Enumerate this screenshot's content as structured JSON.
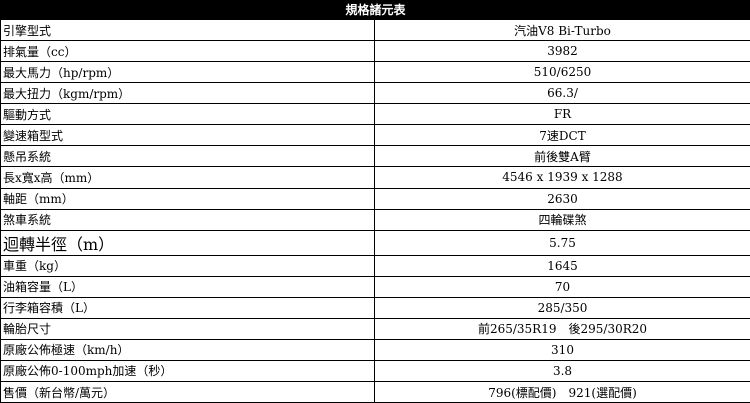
{
  "title": "規格諸元表",
  "rows": [
    {
      "label": "引擎型式",
      "value": "汽油V8 Bi-Turbo"
    },
    {
      "label": "排氣量（cc）",
      "value": "3982"
    },
    {
      "label": "最大馬力（hp/rpm）",
      "value": "510/6250"
    },
    {
      "label": "最大扭力（kgm/rpm）",
      "value": "66.3/"
    },
    {
      "label": "驅動方式",
      "value": "FR"
    },
    {
      "label": "變速箱型式",
      "value": "7速DCT"
    },
    {
      "label": "懸吊系統",
      "value": "前後雙A臂"
    },
    {
      "label": "長x寬x高（mm）",
      "value": "4546 x 1939 x 1288"
    },
    {
      "label": "軸距（mm）",
      "value": "2630"
    },
    {
      "label": "煞車系統",
      "value": "四輪碟煞"
    },
    {
      "label": "迴轉半徑（m）",
      "value": "5.75"
    },
    {
      "label": "車重（kg）",
      "value": "1645"
    },
    {
      "label": "油箱容量（L）",
      "value": "70"
    },
    {
      "label": "行李箱容積（L）",
      "value": "285/350"
    },
    {
      "label": "輪胎尺寸",
      "value": "前265/35R19　後295/30R20"
    },
    {
      "label": "原廠公佈極速（km/h）",
      "value": "310"
    },
    {
      "label": "原廠公佈0-100mph加速（秒）",
      "value": "3.8"
    },
    {
      "label": "售價（新台幣/萬元）",
      "value": "796(標配價)　921(選配價)"
    }
  ]
}
